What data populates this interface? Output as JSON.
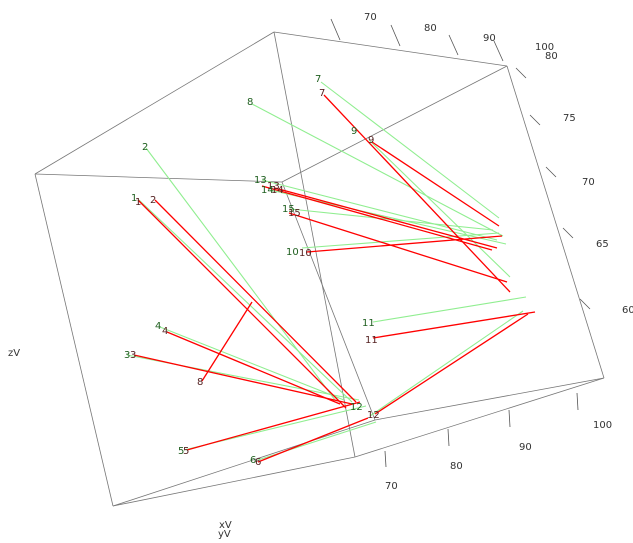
{
  "chart_data": {
    "type": "3d-scatter-segments",
    "axes": {
      "x": {
        "label": "xV",
        "ticks": [
          "70",
          "80",
          "90",
          "100"
        ]
      },
      "y": {
        "label": "yV",
        "ticks": [
          "70",
          "80",
          "90",
          "100"
        ]
      },
      "z": {
        "label": "zV",
        "ticks": [
          "60",
          "65",
          "70",
          "75",
          "80"
        ]
      }
    },
    "series": [
      {
        "color": "#90ee90"
      },
      {
        "color": "#ff0000"
      }
    ],
    "points": [
      {
        "id": "1",
        "green_label": "1",
        "red_label": "1"
      },
      {
        "id": "2",
        "green_label": "2",
        "red_label": "2"
      },
      {
        "id": "3",
        "green_label": "3",
        "red_label": "3"
      },
      {
        "id": "4",
        "green_label": "4",
        "red_label": "4"
      },
      {
        "id": "5",
        "green_label": "5",
        "red_label": "5"
      },
      {
        "id": "6",
        "green_label": "6",
        "red_label": "6"
      },
      {
        "id": "7",
        "green_label": "7",
        "red_label": "7"
      },
      {
        "id": "8",
        "green_label": "8",
        "red_label": "8"
      },
      {
        "id": "9",
        "green_label": "9",
        "red_label": "9"
      },
      {
        "id": "10",
        "green_label": "10",
        "red_label": "10"
      },
      {
        "id": "11",
        "green_label": "11",
        "red_label": "11"
      },
      {
        "id": "12",
        "green_label": "12",
        "red_label": "12"
      },
      {
        "id": "13",
        "green_label": "13",
        "red_label": "13"
      },
      {
        "id": "14",
        "green_label": "14",
        "red_label": "14"
      },
      {
        "id": "15",
        "green_label": "15",
        "red_label": "15"
      }
    ]
  }
}
